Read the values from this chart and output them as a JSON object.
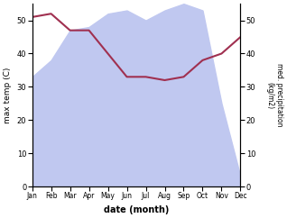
{
  "months": [
    "Jan",
    "Feb",
    "Mar",
    "Apr",
    "May",
    "Jun",
    "Jul",
    "Aug",
    "Sep",
    "Oct",
    "Nov",
    "Dec"
  ],
  "x": [
    0,
    1,
    2,
    3,
    4,
    5,
    6,
    7,
    8,
    9,
    10,
    11
  ],
  "temperature": [
    51,
    52,
    47,
    47,
    40,
    33,
    33,
    32,
    33,
    38,
    40,
    45
  ],
  "precipitation": [
    33,
    38,
    47,
    48,
    52,
    53,
    50,
    53,
    55,
    53,
    25,
    3
  ],
  "temp_color": "#a03050",
  "precip_fill_color": "#c0c8f0",
  "ylabel_left": "max temp (C)",
  "ylabel_right": "med. precipitation\n(kg/m2)",
  "xlabel": "date (month)",
  "ylim_left": [
    0,
    55
  ],
  "ylim_right": [
    0,
    55
  ],
  "yticks_left": [
    0,
    10,
    20,
    30,
    40,
    50
  ],
  "yticks_right": [
    0,
    10,
    20,
    30,
    40,
    50
  ],
  "background_color": "#ffffff",
  "figsize": [
    3.18,
    2.42
  ],
  "dpi": 100
}
